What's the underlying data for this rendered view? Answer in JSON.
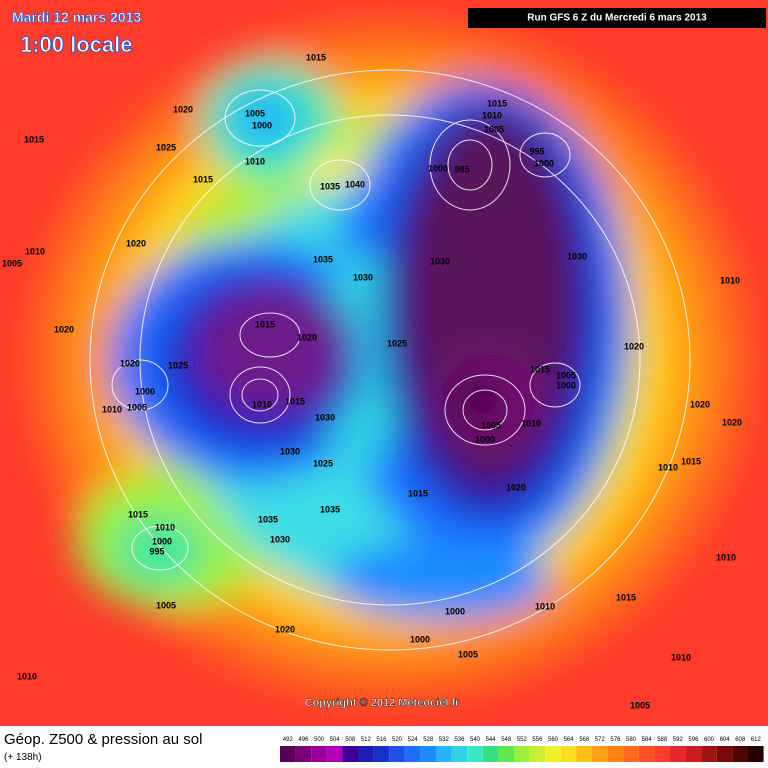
{
  "header": {
    "date": "Mardi 12 mars 2013",
    "time": "1:00 locale",
    "run": "Run GFS 6 Z du Mercredi 6 mars 2013"
  },
  "map": {
    "isobar_labels": [
      "1015",
      "1020",
      "1005",
      "1000",
      "1015",
      "1025",
      "1010",
      "1015",
      "1035",
      "1040",
      "1020",
      "1010",
      "1005",
      "1035",
      "1030",
      "1030",
      "1015",
      "1020",
      "1020",
      "1025",
      "1025",
      "1020",
      "1000",
      "1010",
      "1005",
      "1010",
      "1015",
      "1030",
      "1030",
      "1025",
      "1015",
      "1020",
      "1005",
      "1000",
      "1010",
      "1015",
      "1005",
      "1000",
      "1015",
      "1010",
      "1005",
      "995",
      "1000",
      "1000",
      "985",
      "1030",
      "1010",
      "1020",
      "1020",
      "1020",
      "1010",
      "1015",
      "1010",
      "1015",
      "1010",
      "1015",
      "1010",
      "1000",
      "995",
      "1035",
      "1035",
      "1030",
      "1005",
      "1020",
      "1000",
      "1000",
      "1005",
      "1010",
      "1005",
      "1010"
    ]
  },
  "footer": {
    "copyright": "Copyright © 2012 Meteociel.fr",
    "title": "Géop. Z500 & pression au sol",
    "lead": "(+ 138h)",
    "scale": {
      "labels": [
        492,
        496,
        500,
        504,
        508,
        512,
        516,
        520,
        524,
        528,
        532,
        536,
        540,
        544,
        548,
        552,
        556,
        560,
        564,
        568,
        572,
        576,
        580,
        584,
        588,
        592,
        596,
        600,
        604,
        608,
        612
      ],
      "colors": [
        "#5a005a",
        "#780078",
        "#960096",
        "#b400b4",
        "#3c0096",
        "#1e1eb4",
        "#1432c8",
        "#1e50e6",
        "#1e6eff",
        "#1e8cff",
        "#28b4ff",
        "#32d2e6",
        "#3ce6c8",
        "#3cdc82",
        "#64e650",
        "#9cf03c",
        "#c8f032",
        "#f0f028",
        "#ffdc1e",
        "#ffbe14",
        "#ffa014",
        "#ff8214",
        "#ff6a1e",
        "#ff5028",
        "#ff3b2c",
        "#e6282a",
        "#c81e1e",
        "#a01414",
        "#780a0a",
        "#500505",
        "#280000"
      ]
    }
  }
}
